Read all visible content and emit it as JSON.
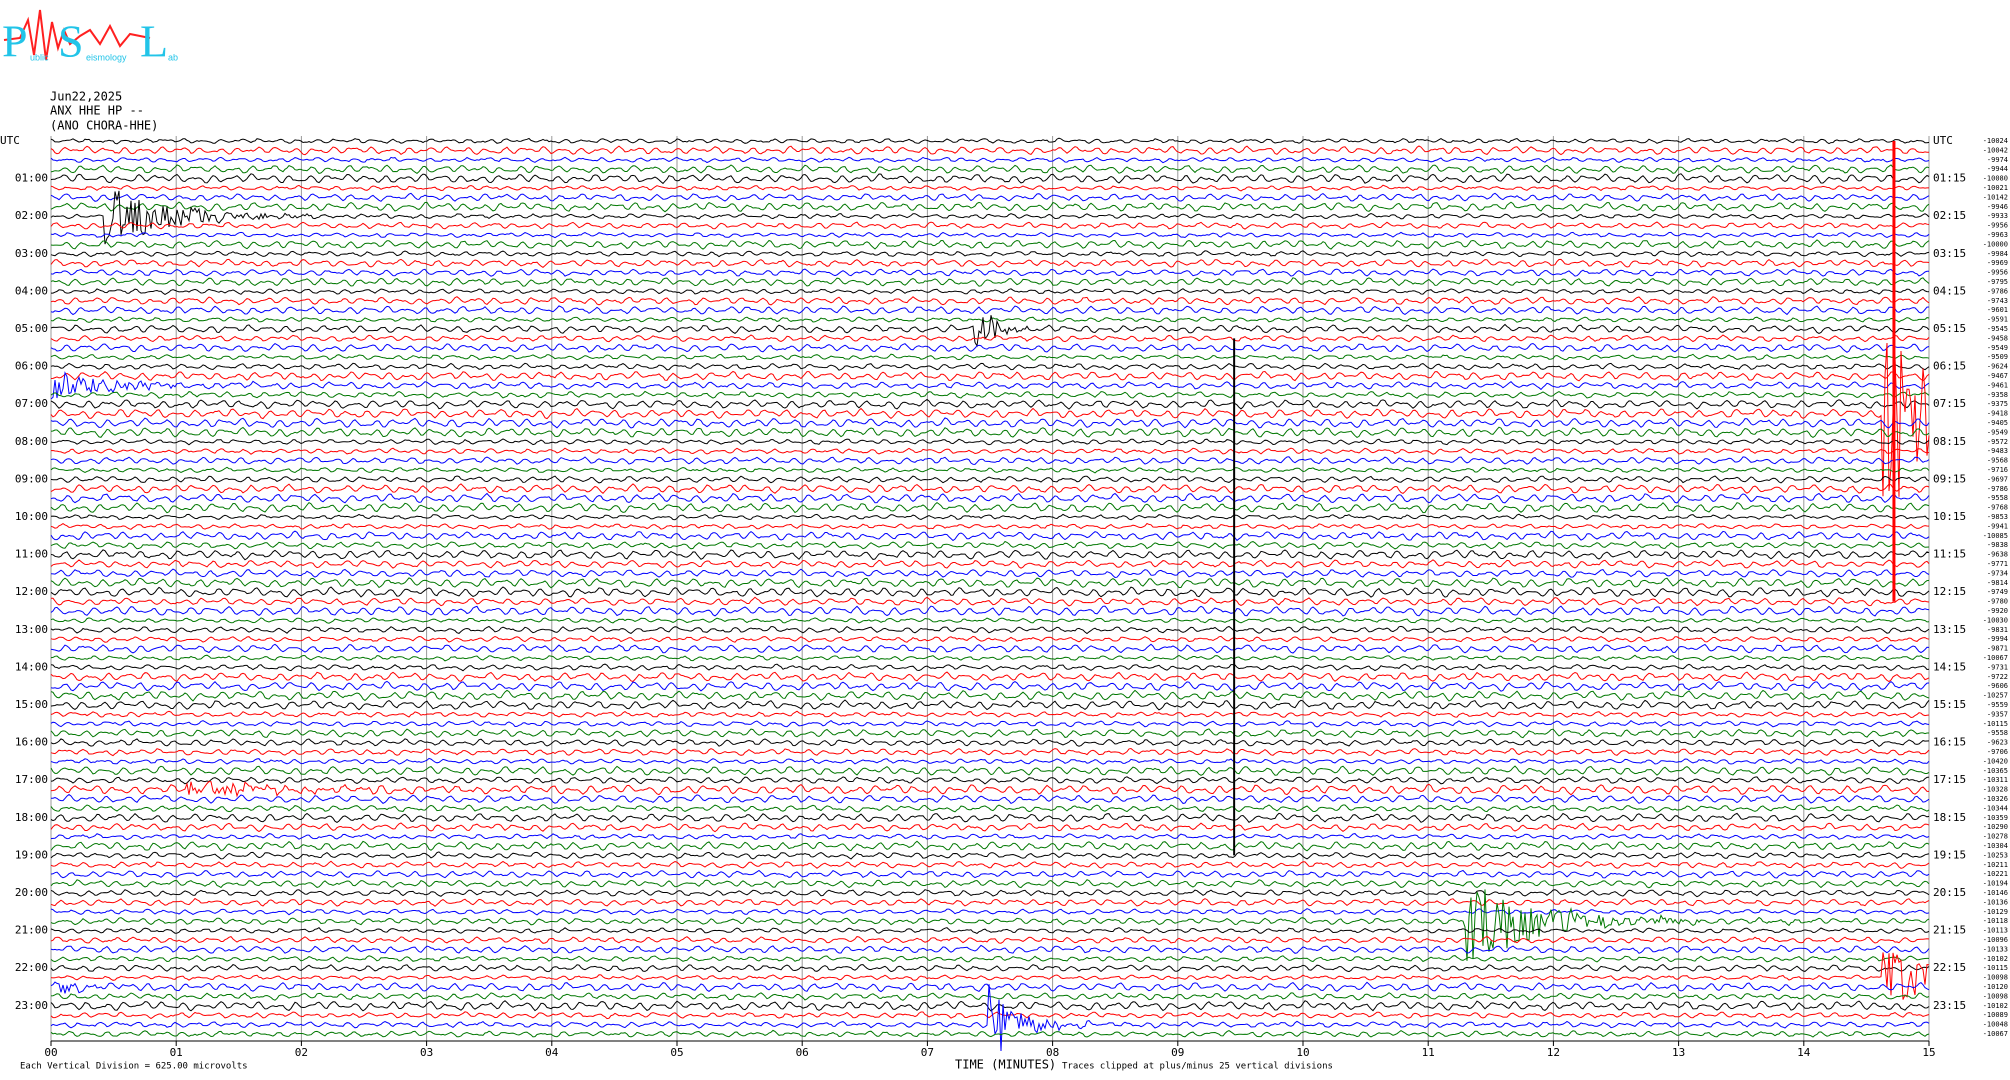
{
  "chart_data": {
    "type": "helicorder",
    "logo": [
      "P",
      "ublic",
      "S",
      "eismology",
      "L",
      "ab"
    ],
    "title_lines": [
      "Jun22,2025",
      "ANX HHE HP --",
      "(ANO CHORA-HHE)"
    ],
    "left_labels": [
      "UTC",
      "01:00",
      "02:00",
      "03:00",
      "04:00",
      "05:00",
      "06:00",
      "07:00",
      "08:00",
      "09:00",
      "10:00",
      "11:00",
      "12:00",
      "13:00",
      "14:00",
      "15:00",
      "16:00",
      "17:00",
      "18:00",
      "19:00",
      "20:00",
      "21:00",
      "22:00",
      "23:00"
    ],
    "right_labels": [
      "UTC",
      "01:15",
      "02:15",
      "03:15",
      "04:15",
      "05:15",
      "06:15",
      "07:15",
      "08:15",
      "09:15",
      "10:15",
      "11:15",
      "12:15",
      "13:15",
      "14:15",
      "15:15",
      "16:15",
      "17:15",
      "18:15",
      "19:15",
      "20:15",
      "21:15",
      "22:15",
      "23:15"
    ],
    "offsets": [
      -10024,
      -10042,
      -9974,
      -9944,
      -10080,
      -10021,
      -10142,
      -9946,
      -9933,
      -9956,
      -9963,
      -10000,
      -9984,
      -9969,
      -9956,
      -9795,
      -9786,
      -9743,
      -9601,
      -9591,
      -9545,
      -9458,
      -9549,
      -9509,
      -9624,
      -9467,
      -9461,
      -9358,
      -9375,
      -9418,
      -9405,
      -9549,
      -9572,
      -9483,
      -9568,
      -9716,
      -9697,
      -9786,
      -9558,
      -9768,
      -9853,
      -9941,
      -10085,
      -9838,
      -9638,
      -9771,
      -9734,
      -9814,
      -9749,
      -9780,
      -9920,
      -10030,
      -9831,
      -9994,
      -9871,
      -10067,
      -9731,
      -9722,
      -9606,
      -10257,
      -9559,
      -9357,
      -10115,
      -9558,
      -9623,
      -9706,
      -10420,
      -10365,
      -10311,
      -10328,
      -10326,
      -10344,
      -10359,
      -10290,
      -10278,
      -10304,
      -10253,
      -10211,
      -10221,
      -10194,
      -10146,
      -10136,
      -10129,
      -10118,
      -10113,
      -10096,
      -10133,
      -10102,
      -10115,
      -10098,
      -10120,
      -10098,
      -10102,
      -10089,
      -10048,
      -10067
    ],
    "trace_colors": [
      "#000000",
      "#ff0000",
      "#0000ff",
      "#007700"
    ],
    "xlim": [
      0,
      15
    ],
    "xticks": [
      {
        "value": 0,
        "label": "00"
      },
      {
        "value": 1,
        "label": "01"
      },
      {
        "value": 2,
        "label": "02"
      },
      {
        "value": 3,
        "label": "03"
      },
      {
        "value": 4,
        "label": "04"
      },
      {
        "value": 5,
        "label": "05"
      },
      {
        "value": 6,
        "label": "06"
      },
      {
        "value": 7,
        "label": "07"
      },
      {
        "value": 8,
        "label": "08"
      },
      {
        "value": 9,
        "label": "09"
      },
      10,
      11,
      12,
      13,
      14,
      15
    ],
    "xlabel": "TIME (MINUTES)",
    "scale_note": "Each Vertical Division =  625.00 microvolts",
    "clip_note": "Traces clipped at plus/minus 25 vertical divisions",
    "grid": true
  }
}
